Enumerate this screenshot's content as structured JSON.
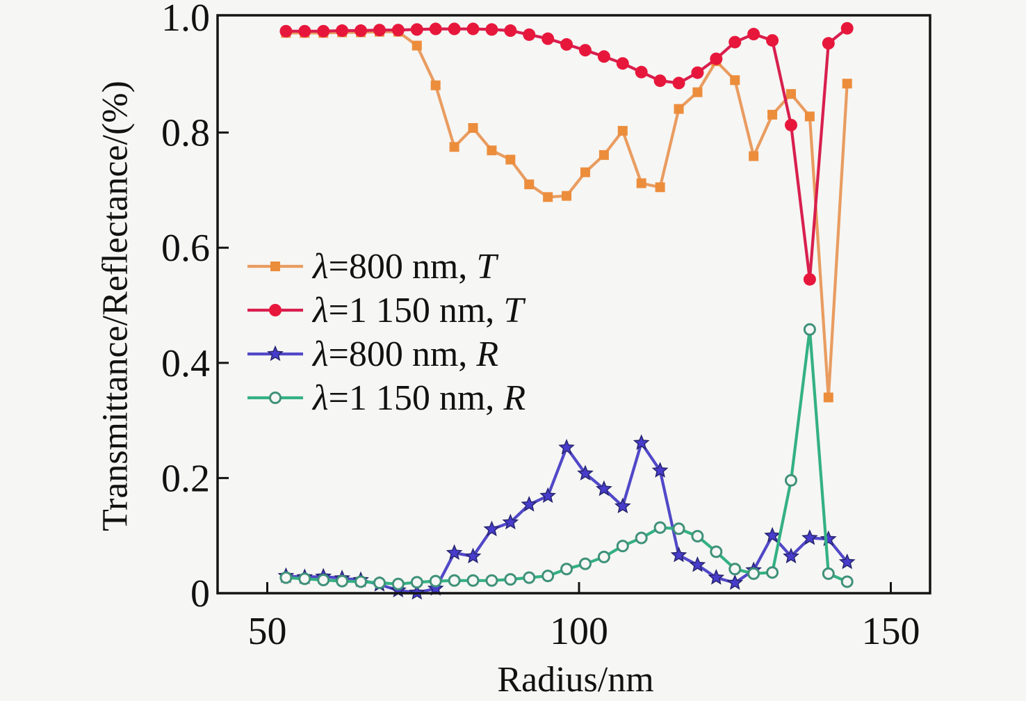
{
  "figure": {
    "background": "#f6f6f4",
    "axis_color": "#141414",
    "text_color": "#111111"
  },
  "chart_data": {
    "type": "line",
    "title": "",
    "xlabel": "Radius/nm",
    "ylabel": "Transmittance/Reflectance/(%)",
    "xlim": [
      42,
      156
    ],
    "ylim": [
      0,
      1.0
    ],
    "grid": false,
    "legend_position": "center-left",
    "xticks": {
      "values": [
        50,
        100,
        150
      ],
      "labels": [
        "50",
        "100",
        "150"
      ]
    },
    "yticks": {
      "values": [
        0,
        0.2,
        0.4,
        0.6,
        0.8,
        1.0
      ],
      "labels": [
        "0",
        "0.2",
        "0.4",
        "0.6",
        "0.8",
        "1.0"
      ],
      "line_values": [
        0.2,
        0.4,
        0.6,
        0.8
      ]
    },
    "x": [
      53,
      56,
      59,
      62,
      65,
      68,
      71,
      74,
      77,
      80,
      83,
      86,
      89,
      92,
      95,
      98,
      101,
      104,
      107,
      110,
      113,
      116,
      119,
      122,
      125,
      128,
      131,
      134,
      137,
      140,
      143
    ],
    "series": [
      {
        "id": "800nm-T",
        "name": "λ=800 nm, T",
        "name_parts": {
          "sym": "λ",
          "mid": "=800 nm, ",
          "ital": "T"
        },
        "marker": "square",
        "line_color": "#E99C60",
        "marker_color": "#EC8D3C",
        "values": [
          0.973,
          0.973,
          0.973,
          0.974,
          0.974,
          0.975,
          0.975,
          0.951,
          0.882,
          0.775,
          0.808,
          0.769,
          0.753,
          0.71,
          0.688,
          0.69,
          0.731,
          0.761,
          0.803,
          0.712,
          0.705,
          0.841,
          0.87,
          0.924,
          0.891,
          0.759,
          0.831,
          0.867,
          0.828,
          0.34,
          0.885
        ]
      },
      {
        "id": "1150nm-T",
        "name": "λ=1 150 nm, T",
        "name_parts": {
          "sym": "λ",
          "mid": "=1 150 nm, ",
          "ital": "T"
        },
        "marker": "circle",
        "line_color": "#D81F4E",
        "marker_color": "#E7173C",
        "values": [
          0.976,
          0.976,
          0.976,
          0.977,
          0.977,
          0.978,
          0.978,
          0.979,
          0.98,
          0.98,
          0.98,
          0.979,
          0.977,
          0.97,
          0.963,
          0.953,
          0.943,
          0.932,
          0.92,
          0.905,
          0.89,
          0.886,
          0.904,
          0.928,
          0.957,
          0.971,
          0.96,
          0.813,
          0.545,
          0.955,
          0.981
        ]
      },
      {
        "id": "800nm-R",
        "name": "λ=800 nm, R",
        "name_parts": {
          "sym": "λ",
          "mid": "=800 nm, ",
          "ital": "R"
        },
        "marker": "star",
        "line_color": "#5148C8",
        "marker_color": "#473CCB",
        "marker_edge": "#26246E",
        "values": [
          0.03,
          0.028,
          0.029,
          0.026,
          0.023,
          0.015,
          0.005,
          0.001,
          0.008,
          0.07,
          0.064,
          0.111,
          0.123,
          0.154,
          0.169,
          0.253,
          0.208,
          0.181,
          0.151,
          0.261,
          0.213,
          0.066,
          0.049,
          0.027,
          0.018,
          0.04,
          0.1,
          0.064,
          0.096,
          0.094,
          0.054
        ]
      },
      {
        "id": "1150nm-R",
        "name": "λ=1 150 nm, R",
        "name_parts": {
          "sym": "λ",
          "mid": "=1 150 nm, ",
          "ital": "R"
        },
        "marker": "open-circle",
        "line_color": "#34B183",
        "marker_color": "#f6f6f4",
        "marker_edge": "#3F9179",
        "values": [
          0.027,
          0.025,
          0.023,
          0.021,
          0.02,
          0.018,
          0.016,
          0.019,
          0.021,
          0.022,
          0.022,
          0.022,
          0.024,
          0.027,
          0.03,
          0.042,
          0.051,
          0.063,
          0.082,
          0.096,
          0.114,
          0.112,
          0.099,
          0.072,
          0.042,
          0.034,
          0.036,
          0.196,
          0.458,
          0.034,
          0.02
        ]
      }
    ]
  }
}
